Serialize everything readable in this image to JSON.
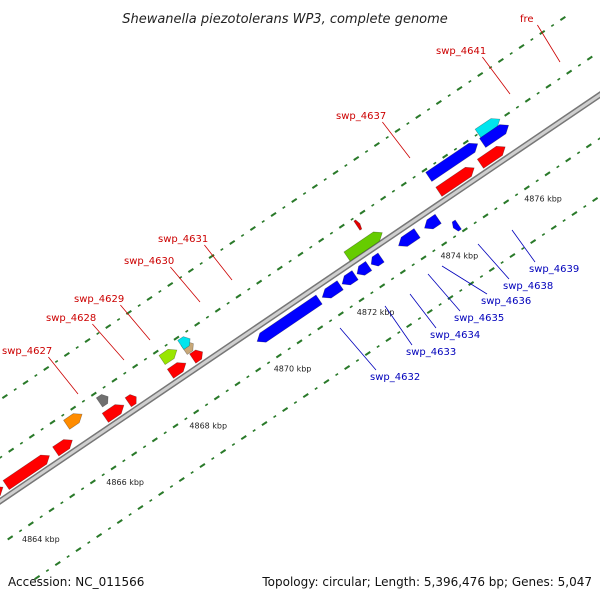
{
  "title": "Shewanella piezotolerans WP3, complete genome",
  "footer": {
    "accession": "Accession: NC_011566",
    "summary": "Topology: circular; Length: 5,396,476 bp; Genes: 5,047"
  },
  "colors": {
    "forward_label": "#cc0000",
    "reverse_label": "#0000bb",
    "backbone": "#999999",
    "ticks": "#2a7a2a"
  },
  "kbp_labels": [
    {
      "text": "4864 kbp",
      "pos": 0.0
    },
    {
      "text": "4866 kbp",
      "pos": 0.136
    },
    {
      "text": "4868 kbp",
      "pos": 0.27
    },
    {
      "text": "4870 kbp",
      "pos": 0.406
    },
    {
      "text": "4872 kbp",
      "pos": 0.54
    },
    {
      "text": "4874 kbp",
      "pos": 0.675
    },
    {
      "text": "4876 kbp",
      "pos": 0.81
    }
  ],
  "genes": [
    {
      "name": "",
      "strand": "fwd",
      "color": "#ff0000",
      "start": 0.0,
      "end": 0.03
    },
    {
      "name": "",
      "strand": "fwd",
      "color": "#ff0000",
      "start": 0.035,
      "end": 0.105
    },
    {
      "name": "",
      "strand": "fwd",
      "color": "#ff0000",
      "start": 0.115,
      "end": 0.142
    },
    {
      "name": "",
      "strand": "fwd",
      "color": "#ff0000",
      "start": 0.195,
      "end": 0.225
    },
    {
      "name": "",
      "strand": "fwd",
      "color": "#ff0000",
      "start": 0.232,
      "end": 0.245
    },
    {
      "name": "",
      "strand": "fwd",
      "color": "#ff0000",
      "start": 0.3,
      "end": 0.325
    },
    {
      "name": "",
      "strand": "fwd",
      "color": "#ff0000",
      "start": 0.336,
      "end": 0.352
    },
    {
      "name": "",
      "strand": "fwd",
      "color": "#ff0000",
      "start": 0.733,
      "end": 0.79
    },
    {
      "name": "",
      "strand": "fwd",
      "color": "#ff0000",
      "start": 0.8,
      "end": 0.84
    },
    {
      "name": "swp_4627",
      "strand": "fwd",
      "color": "#ff8c00",
      "start": 0.147,
      "end": 0.172
    },
    {
      "name": "swp_4628",
      "strand": "fwd",
      "color": "#707070",
      "start": 0.2,
      "end": 0.214
    },
    {
      "name": "swp_4629",
      "strand": "fwd",
      "color": "#99e600",
      "start": 0.301,
      "end": 0.325
    },
    {
      "name": "swp_4630",
      "strand": "fwd",
      "color": "#c8a878",
      "start": 0.333,
      "end": 0.348
    },
    {
      "name": "swp_4631",
      "strand": "fwd",
      "color": "#00e5ee",
      "start": 0.333,
      "end": 0.348
    },
    {
      "name": "swp_4632",
      "strand": "rev",
      "color": "#0000ff",
      "start": 0.42,
      "end": 0.52
    },
    {
      "name": "swp_4633",
      "strand": "rev",
      "color": "#0000ff",
      "start": 0.525,
      "end": 0.554
    },
    {
      "name": "swp_4634",
      "strand": "rev",
      "color": "#0000ff",
      "start": 0.557,
      "end": 0.578
    },
    {
      "name": "swp_4635",
      "strand": "rev",
      "color": "#0000ff",
      "start": 0.581,
      "end": 0.6
    },
    {
      "name": "swp_4636",
      "strand": "rev",
      "color": "#0000ff",
      "start": 0.604,
      "end": 0.62
    },
    {
      "name": "",
      "strand": "fwd",
      "color": "#66cc00",
      "start": 0.583,
      "end": 0.64
    },
    {
      "name": "swp_4637",
      "strand": "fwd",
      "color": "#e60000",
      "start": 0.617,
      "end": 0.622
    },
    {
      "name": "swp_4638",
      "strand": "rev",
      "color": "#0000ff",
      "start": 0.648,
      "end": 0.678
    },
    {
      "name": "swp_4639",
      "strand": "rev",
      "color": "#0000ff",
      "start": 0.69,
      "end": 0.712
    },
    {
      "name": "",
      "strand": "rev",
      "color": "#0000ff",
      "start": 0.722,
      "end": 0.73
    },
    {
      "name": "swp_4641",
      "strand": "fwd",
      "color": "#0000ff",
      "start": 0.733,
      "end": 0.812
    },
    {
      "name": "fre",
      "strand": "fwd",
      "color": "#00e5ee",
      "start": 0.82,
      "end": 0.855
    },
    {
      "name": "",
      "strand": "fwd",
      "color": "#0000ff",
      "start": 0.818,
      "end": 0.86
    }
  ],
  "labels": [
    {
      "text": "swp_4627",
      "side": "fwd"
    },
    {
      "text": "swp_4628",
      "side": "fwd"
    },
    {
      "text": "swp_4629",
      "side": "fwd"
    },
    {
      "text": "swp_4630",
      "side": "fwd"
    },
    {
      "text": "swp_4631",
      "side": "fwd"
    },
    {
      "text": "swp_4637",
      "side": "fwd"
    },
    {
      "text": "swp_4641",
      "side": "fwd"
    },
    {
      "text": "fre",
      "side": "fwd"
    },
    {
      "text": "swp_4632",
      "side": "rev"
    },
    {
      "text": "swp_4633",
      "side": "rev"
    },
    {
      "text": "swp_4634",
      "side": "rev"
    },
    {
      "text": "swp_4635",
      "side": "rev"
    },
    {
      "text": "swp_4636",
      "side": "rev"
    },
    {
      "text": "swp_4638",
      "side": "rev"
    },
    {
      "text": "swp_4639",
      "side": "rev"
    }
  ]
}
